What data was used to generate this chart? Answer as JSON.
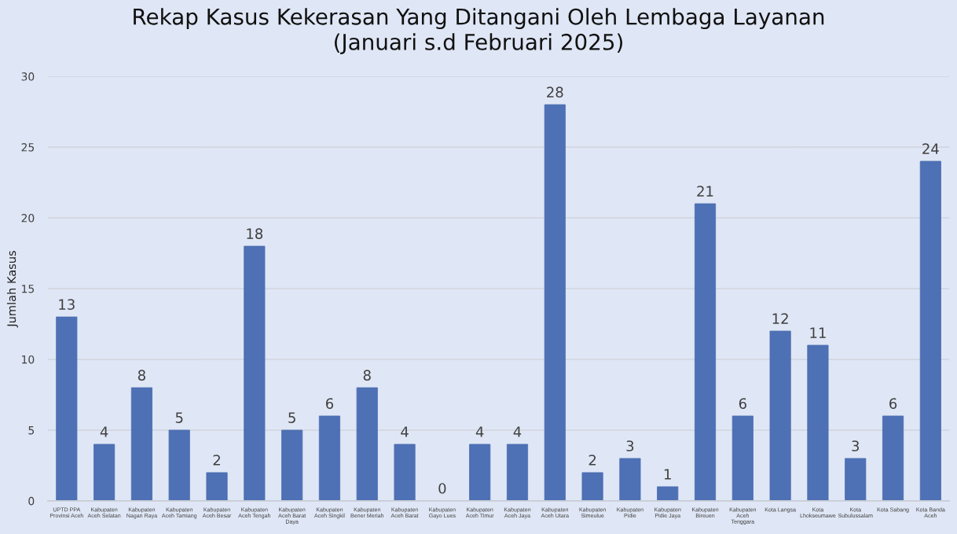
{
  "chart_data": {
    "type": "bar",
    "title": "Rekap Kasus Kekerasan Yang Ditangani Oleh Lembaga Layanan\n(Januari s.d Februari 2025)",
    "ylabel": "Jumlah Kasus",
    "categories": [
      "UPTD PPA\nProvinsi Aceh",
      "Kabupaten\nAceh Selatan",
      "Kabupaten\nNagan Raya",
      "Kabupaten\nAceh Tamiang",
      "Kabupaten\nAceh Besar",
      "Kabupaten\nAceh Tengah",
      "Kabupaten\nAceh Barat\nDaya",
      "Kabupaten\nAceh Singkil",
      "Kabupaten\nBener Meriah",
      "Kabupaten\nAceh Barat",
      "Kabupaten\nGayo Lues",
      "Kabupaten\nAceh Timur",
      "Kabupaten\nAceh Jaya",
      "Kabupaten\nAceh Utara",
      "Kabupaten\nSimeulue",
      "Kabupaten\nPidie",
      "Kabupaten\nPidie Jaya",
      "Kabupaten\nBireuen",
      "Kabupaten\nAceh\nTenggara",
      "Kota Langsa",
      "Kota\nLhokseumawe",
      "Kota\nSubulussalam",
      "Kota Sabang",
      "Kota Banda\nAceh"
    ],
    "values": [
      13,
      4,
      8,
      5,
      2,
      18,
      5,
      6,
      8,
      4,
      0,
      4,
      4,
      28,
      2,
      3,
      1,
      21,
      6,
      12,
      11,
      3,
      6,
      24
    ],
    "color": "#4e70b4",
    "ylim": [
      0,
      30
    ],
    "yticks": [
      0,
      5,
      10,
      15,
      20,
      25,
      30
    ],
    "grid": "y",
    "data_labels": true
  }
}
